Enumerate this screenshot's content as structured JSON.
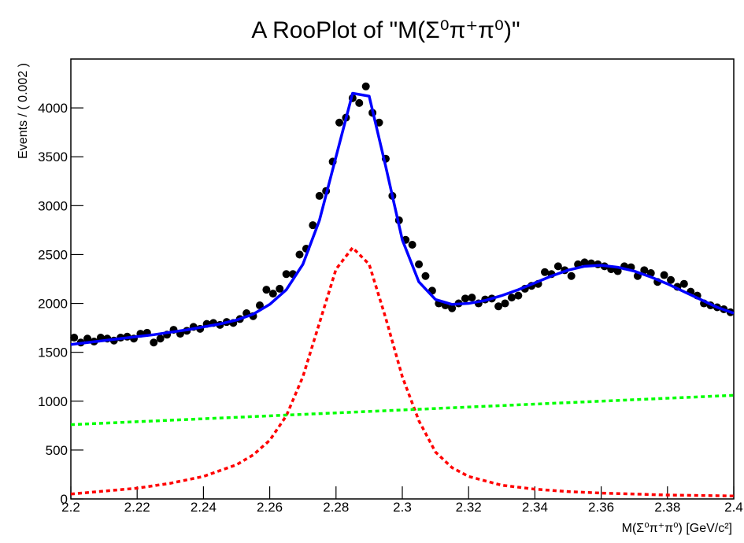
{
  "chart_data": {
    "type": "scatter",
    "title": "A RooPlot of \"M(Σ⁰π⁺π⁰)\"",
    "x_label": "M(Σ⁰π⁺π⁰) [GeV/c²]",
    "y_label": "Events / ( 0.002 )",
    "xlim": [
      2.2,
      2.4
    ],
    "xticks": [
      2.2,
      2.22,
      2.24,
      2.26,
      2.28,
      2.3,
      2.32,
      2.34,
      2.36,
      2.38,
      2.4
    ],
    "ylim": [
      0,
      4500
    ],
    "yticks": [
      0,
      500,
      1000,
      1500,
      2000,
      2500,
      3000,
      3500,
      4000
    ],
    "series": [
      {
        "kind": "points",
        "color": "#000000",
        "x": [
          2.201,
          2.203,
          2.205,
          2.207,
          2.209,
          2.211,
          2.213,
          2.215,
          2.217,
          2.219,
          2.221,
          2.223,
          2.225,
          2.227,
          2.229,
          2.231,
          2.233,
          2.235,
          2.237,
          2.239,
          2.241,
          2.243,
          2.245,
          2.247,
          2.249,
          2.251,
          2.253,
          2.255,
          2.257,
          2.259,
          2.261,
          2.263,
          2.265,
          2.267,
          2.269,
          2.271,
          2.273,
          2.275,
          2.277,
          2.279,
          2.281,
          2.283,
          2.285,
          2.287,
          2.289,
          2.291,
          2.293,
          2.295,
          2.297,
          2.299,
          2.301,
          2.303,
          2.305,
          2.307,
          2.309,
          2.311,
          2.313,
          2.315,
          2.317,
          2.319,
          2.321,
          2.323,
          2.325,
          2.327,
          2.329,
          2.331,
          2.333,
          2.335,
          2.337,
          2.339,
          2.341,
          2.343,
          2.345,
          2.347,
          2.349,
          2.351,
          2.353,
          2.355,
          2.357,
          2.359,
          2.361,
          2.363,
          2.365,
          2.367,
          2.369,
          2.371,
          2.373,
          2.375,
          2.377,
          2.379,
          2.381,
          2.383,
          2.385,
          2.387,
          2.389,
          2.391,
          2.393,
          2.395,
          2.397,
          2.399
        ],
        "values": [
          1650,
          1600,
          1640,
          1610,
          1650,
          1640,
          1620,
          1650,
          1660,
          1640,
          1690,
          1700,
          1600,
          1640,
          1680,
          1730,
          1690,
          1720,
          1760,
          1740,
          1790,
          1800,
          1780,
          1810,
          1800,
          1840,
          1900,
          1870,
          1980,
          2140,
          2100,
          2150,
          2300,
          2300,
          2500,
          2560,
          2800,
          3100,
          3150,
          3450,
          3850,
          3900,
          4100,
          4050,
          4220,
          3950,
          3850,
          3480,
          3100,
          2850,
          2650,
          2600,
          2400,
          2280,
          2130,
          2000,
          1980,
          1950,
          2000,
          2050,
          2060,
          2000,
          2040,
          2050,
          1970,
          2000,
          2060,
          2080,
          2150,
          2180,
          2200,
          2320,
          2300,
          2380,
          2340,
          2280,
          2400,
          2420,
          2410,
          2400,
          2380,
          2350,
          2330,
          2380,
          2370,
          2280,
          2340,
          2310,
          2220,
          2290,
          2240,
          2170,
          2200,
          2120,
          2080,
          2000,
          1980,
          1960,
          1940,
          1910
        ]
      },
      {
        "kind": "line",
        "color": "#0000ff",
        "dashed": false,
        "x": [
          2.2,
          2.205,
          2.21,
          2.215,
          2.22,
          2.225,
          2.23,
          2.235,
          2.24,
          2.245,
          2.25,
          2.255,
          2.26,
          2.265,
          2.27,
          2.275,
          2.28,
          2.285,
          2.29,
          2.295,
          2.3,
          2.305,
          2.31,
          2.315,
          2.32,
          2.325,
          2.33,
          2.335,
          2.34,
          2.345,
          2.35,
          2.355,
          2.36,
          2.365,
          2.37,
          2.375,
          2.38,
          2.385,
          2.39,
          2.395,
          2.4
        ],
        "values": [
          1580,
          1600,
          1620,
          1640,
          1660,
          1680,
          1705,
          1730,
          1760,
          1790,
          1830,
          1890,
          1990,
          2140,
          2400,
          2850,
          3500,
          4150,
          4120,
          3400,
          2650,
          2220,
          2040,
          1990,
          2000,
          2030,
          2080,
          2140,
          2210,
          2280,
          2340,
          2380,
          2390,
          2370,
          2330,
          2270,
          2200,
          2120,
          2040,
          1960,
          1900
        ]
      },
      {
        "kind": "line",
        "color": "#ff0000",
        "dashed": true,
        "x": [
          2.2,
          2.21,
          2.22,
          2.23,
          2.24,
          2.25,
          2.255,
          2.26,
          2.265,
          2.27,
          2.275,
          2.28,
          2.285,
          2.29,
          2.295,
          2.3,
          2.305,
          2.31,
          2.315,
          2.32,
          2.33,
          2.34,
          2.35,
          2.36,
          2.37,
          2.38,
          2.39,
          2.4
        ],
        "values": [
          50,
          80,
          110,
          160,
          230,
          350,
          450,
          600,
          850,
          1250,
          1800,
          2350,
          2570,
          2400,
          1850,
          1250,
          800,
          480,
          320,
          230,
          140,
          100,
          75,
          60,
          50,
          40,
          35,
          30
        ]
      },
      {
        "kind": "line",
        "color": "#00ff00",
        "dashed": true,
        "x": [
          2.2,
          2.4
        ],
        "values": [
          760,
          1060
        ]
      }
    ]
  }
}
